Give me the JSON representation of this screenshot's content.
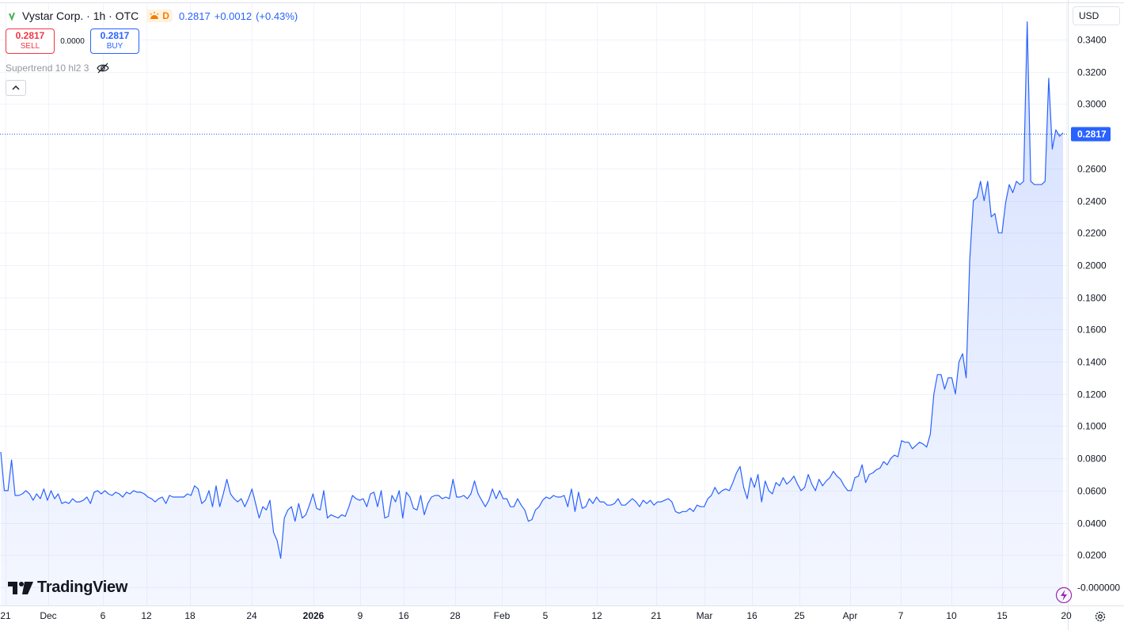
{
  "header": {
    "symbol_title": "Vystar Corp. · 1h · OTC",
    "session_badge": "D",
    "last_price": "0.2817",
    "change": "+0.0012",
    "change_pct": "(+0.43%)",
    "quote_color": "#2962ff"
  },
  "trade": {
    "sell_price": "0.2817",
    "sell_label": "SELL",
    "spread": "0.0000",
    "buy_price": "0.2817",
    "buy_label": "BUY"
  },
  "indicator": {
    "label": "Supertrend 10 hl2 3",
    "visibility_icon": "eye-crossed-icon"
  },
  "currency": "USD",
  "branding": {
    "logo_text": "TradingView"
  },
  "colors": {
    "line": "#2962ff",
    "fill_top": "#2962ff",
    "price_label_bg": "#2962ff",
    "grid": "#f0f3fa",
    "axis_text": "#131722"
  },
  "chart_data": {
    "type": "area",
    "y_axis": {
      "ticks": [
        "0.3400",
        "0.3200",
        "0.3000",
        "0.2600",
        "0.2400",
        "0.2200",
        "0.2000",
        "0.1800",
        "0.1600",
        "0.1400",
        "0.1200",
        "0.1000",
        "0.0800",
        "0.0600",
        "0.0400",
        "0.0200",
        "-0.000000"
      ],
      "range": [
        -0.0018,
        0.3515
      ]
    },
    "x_axis": {
      "ticks": [
        {
          "label": "21",
          "bold": false
        },
        {
          "label": "Dec",
          "bold": false
        },
        {
          "label": "6",
          "bold": false
        },
        {
          "label": "12",
          "bold": false
        },
        {
          "label": "18",
          "bold": false
        },
        {
          "label": "24",
          "bold": false
        },
        {
          "label": "2026",
          "bold": true
        },
        {
          "label": "9",
          "bold": false
        },
        {
          "label": "16",
          "bold": false
        },
        {
          "label": "28",
          "bold": false
        },
        {
          "label": "Feb",
          "bold": false
        },
        {
          "label": "5",
          "bold": false
        },
        {
          "label": "12",
          "bold": false
        },
        {
          "label": "21",
          "bold": false
        },
        {
          "label": "Mar",
          "bold": false
        },
        {
          "label": "16",
          "bold": false
        },
        {
          "label": "25",
          "bold": false
        },
        {
          "label": "Apr",
          "bold": false
        },
        {
          "label": "7",
          "bold": false
        },
        {
          "label": "10",
          "bold": false
        },
        {
          "label": "15",
          "bold": false
        },
        {
          "label": "20",
          "bold": false
        }
      ]
    },
    "current_price": 0.2817,
    "current_price_label": "0.2817",
    "grid": true,
    "series": [
      {
        "values": [
          0.084,
          0.06,
          0.06,
          0.079,
          0.057,
          0.057,
          0.058,
          0.06,
          0.058,
          0.054,
          0.058,
          0.055,
          0.061,
          0.054,
          0.06,
          0.055,
          0.058,
          0.052,
          0.053,
          0.052,
          0.055,
          0.053,
          0.053,
          0.054,
          0.056,
          0.052,
          0.059,
          0.06,
          0.058,
          0.06,
          0.058,
          0.057,
          0.059,
          0.058,
          0.056,
          0.059,
          0.058,
          0.06,
          0.059,
          0.059,
          0.058,
          0.056,
          0.055,
          0.053,
          0.055,
          0.056,
          0.052,
          0.057,
          0.056,
          0.056,
          0.056,
          0.056,
          0.058,
          0.057,
          0.063,
          0.061,
          0.052,
          0.054,
          0.06,
          0.05,
          0.063,
          0.05,
          0.058,
          0.067,
          0.058,
          0.055,
          0.053,
          0.055,
          0.05,
          0.055,
          0.061,
          0.052,
          0.043,
          0.05,
          0.048,
          0.054,
          0.034,
          0.029,
          0.018,
          0.043,
          0.048,
          0.05,
          0.041,
          0.052,
          0.043,
          0.045,
          0.051,
          0.058,
          0.049,
          0.048,
          0.06,
          0.043,
          0.045,
          0.044,
          0.043,
          0.045,
          0.044,
          0.05,
          0.057,
          0.055,
          0.054,
          0.055,
          0.05,
          0.058,
          0.059,
          0.05,
          0.06,
          0.043,
          0.044,
          0.057,
          0.053,
          0.06,
          0.043,
          0.059,
          0.056,
          0.049,
          0.048,
          0.057,
          0.045,
          0.052,
          0.056,
          0.057,
          0.057,
          0.055,
          0.056,
          0.055,
          0.067,
          0.056,
          0.056,
          0.057,
          0.055,
          0.058,
          0.066,
          0.058,
          0.054,
          0.05,
          0.054,
          0.061,
          0.055,
          0.06,
          0.055,
          0.055,
          0.05,
          0.05,
          0.055,
          0.051,
          0.048,
          0.041,
          0.042,
          0.048,
          0.05,
          0.054,
          0.056,
          0.055,
          0.057,
          0.056,
          0.056,
          0.057,
          0.05,
          0.061,
          0.047,
          0.059,
          0.049,
          0.05,
          0.055,
          0.052,
          0.056,
          0.053,
          0.053,
          0.051,
          0.051,
          0.052,
          0.055,
          0.051,
          0.051,
          0.053,
          0.055,
          0.053,
          0.05,
          0.054,
          0.052,
          0.054,
          0.051,
          0.053,
          0.053,
          0.054,
          0.055,
          0.053,
          0.047,
          0.046,
          0.047,
          0.047,
          0.049,
          0.047,
          0.051,
          0.05,
          0.05,
          0.055,
          0.057,
          0.062,
          0.058,
          0.06,
          0.061,
          0.06,
          0.065,
          0.071,
          0.075,
          0.062,
          0.055,
          0.068,
          0.062,
          0.07,
          0.053,
          0.066,
          0.06,
          0.058,
          0.065,
          0.063,
          0.068,
          0.064,
          0.066,
          0.069,
          0.064,
          0.06,
          0.062,
          0.07,
          0.064,
          0.06,
          0.067,
          0.063,
          0.066,
          0.068,
          0.072,
          0.069,
          0.067,
          0.063,
          0.06,
          0.06,
          0.068,
          0.069,
          0.076,
          0.065,
          0.07,
          0.071,
          0.073,
          0.074,
          0.078,
          0.076,
          0.08,
          0.082,
          0.081,
          0.091,
          0.09,
          0.09,
          0.086,
          0.088,
          0.09,
          0.089,
          0.087,
          0.095,
          0.12,
          0.132,
          0.132,
          0.123,
          0.13,
          0.13,
          0.12,
          0.14,
          0.145,
          0.13,
          0.203,
          0.24,
          0.242,
          0.252,
          0.24,
          0.252,
          0.23,
          0.232,
          0.22,
          0.22,
          0.239,
          0.25,
          0.245,
          0.252,
          0.25,
          0.252,
          0.351,
          0.252,
          0.25,
          0.25,
          0.25,
          0.252,
          0.316,
          0.272,
          0.284,
          0.28,
          0.282
        ]
      }
    ]
  }
}
